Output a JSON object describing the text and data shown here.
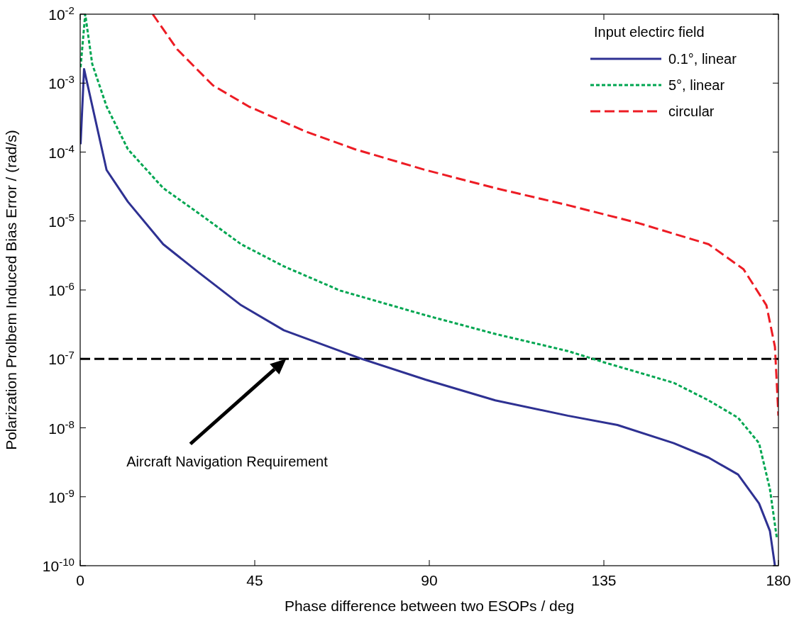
{
  "chart_data": {
    "type": "line",
    "xlabel": "Phase difference between two ESOPs / deg",
    "ylabel": "Polarization Prolbem Induced Bias Error / (rad/s)",
    "legend_title": "Input electirc field",
    "legend": "top right",
    "log": "y",
    "grid": false,
    "xlim": [
      0,
      180
    ],
    "xticks": [
      0,
      45,
      90,
      135,
      180
    ],
    "ylim": [
      1e-10,
      0.01
    ],
    "yticks": [
      {
        "value": 1e-10,
        "label": "10$^{-10}$"
      },
      {
        "value": 1e-09,
        "label": "10$^{-9}$"
      },
      {
        "value": 1e-08,
        "label": "10$^{-8}$"
      },
      {
        "value": 1e-07,
        "label": "10$^{-7}$"
      },
      {
        "value": 1e-06,
        "label": "10$^{-6}$"
      },
      {
        "value": 1e-05,
        "label": "10$^{-5}$"
      },
      {
        "value": 0.0001,
        "label": "10$^{-4}$"
      },
      {
        "value": 0.001,
        "label": "10$^{-3}$"
      },
      {
        "value": 0.01,
        "label": "10$^{-2}$"
      }
    ],
    "series": [
      {
        "name": "0.1°, linear",
        "color": "#2e3192",
        "line_style": "solid",
        "x": [
          0.1,
          1,
          6.8,
          12.3,
          21.4,
          30.5,
          41.5,
          52.5,
          67,
          72.6,
          89,
          107,
          125.7,
          138.5,
          153,
          162,
          169.6,
          175,
          177.8,
          179.1
        ],
        "values": [
          0.00013,
          0.0016,
          5.5e-05,
          1.9e-05,
          4.6e-06,
          1.8e-06,
          6e-07,
          2.6e-07,
          1.3e-07,
          1e-07,
          5e-08,
          2.5e-08,
          1.5e-08,
          1.1e-08,
          6e-09,
          3.7e-09,
          2.1e-09,
          8e-10,
          3.2e-10,
          1e-10
        ]
      },
      {
        "name": "5°, linear",
        "color": "#00a651",
        "line_style": "dotted",
        "x": [
          0.1,
          1.3,
          3.1,
          6.8,
          12.3,
          21.4,
          30.5,
          41.5,
          52.5,
          67,
          89,
          107,
          125.7,
          134.8,
          153,
          162,
          169.6,
          175,
          177.8,
          179.6
        ],
        "values": [
          0.0017,
          0.01,
          0.0019,
          0.00046,
          0.00011,
          3e-05,
          1.3e-05,
          4.6e-06,
          2.2e-06,
          9.8e-07,
          4.3e-07,
          2.3e-07,
          1.3e-07,
          9e-08,
          4.5e-08,
          2.5e-08,
          1.4e-08,
          6e-09,
          1.3e-09,
          2.5e-10
        ]
      },
      {
        "name": "circular",
        "color": "#ed1c24",
        "line_style": "dashed",
        "x": [
          18.7,
          25,
          34.2,
          43.4,
          58,
          70.8,
          89,
          107,
          125.7,
          144,
          162,
          171,
          176.9,
          179.1,
          180
        ],
        "values": [
          0.01,
          0.0031,
          0.00093,
          0.00046,
          0.0002,
          0.00011,
          5.5e-05,
          3e-05,
          1.7e-05,
          9.3e-06,
          4.6e-06,
          2e-06,
          6e-07,
          1.5e-07,
          1.5e-08
        ]
      }
    ],
    "ref_lines": [
      {
        "axis": "y",
        "value": 1e-07,
        "color": "#000000",
        "line_style": "dashed"
      }
    ],
    "annotations": [
      "Aircraft Navigation Requirement"
    ]
  }
}
